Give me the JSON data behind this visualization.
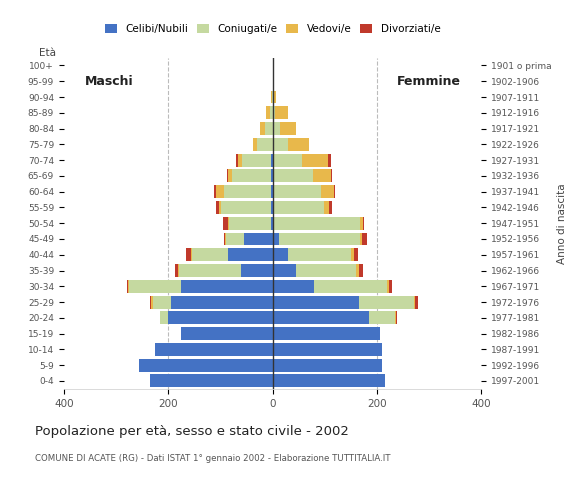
{
  "age_groups": [
    "0-4",
    "5-9",
    "10-14",
    "15-19",
    "20-24",
    "25-29",
    "30-34",
    "35-39",
    "40-44",
    "45-49",
    "50-54",
    "55-59",
    "60-64",
    "65-69",
    "70-74",
    "75-79",
    "80-84",
    "85-89",
    "90-94",
    "95-99",
    "100+"
  ],
  "birth_years": [
    "1997-2001",
    "1992-1996",
    "1987-1991",
    "1982-1986",
    "1977-1981",
    "1972-1976",
    "1967-1971",
    "1962-1966",
    "1957-1961",
    "1952-1956",
    "1947-1951",
    "1942-1946",
    "1937-1941",
    "1932-1936",
    "1927-1931",
    "1922-1926",
    "1917-1921",
    "1912-1916",
    "1907-1911",
    "1902-1906",
    "1901 o prima"
  ],
  "males": {
    "celibe": [
      235,
      255,
      225,
      175,
      200,
      195,
      175,
      60,
      85,
      55,
      3,
      3,
      3,
      3,
      3,
      0,
      0,
      0,
      0,
      0,
      0
    ],
    "coniugato": [
      0,
      0,
      0,
      0,
      15,
      35,
      100,
      120,
      70,
      35,
      80,
      95,
      90,
      75,
      55,
      30,
      15,
      5,
      2,
      0,
      0
    ],
    "vedovo": [
      0,
      0,
      0,
      0,
      0,
      2,
      2,
      2,
      2,
      2,
      2,
      5,
      15,
      8,
      8,
      8,
      10,
      8,
      2,
      0,
      0
    ],
    "divorziato": [
      0,
      0,
      0,
      0,
      0,
      2,
      2,
      5,
      8,
      2,
      10,
      5,
      5,
      2,
      5,
      0,
      0,
      0,
      0,
      0,
      0
    ]
  },
  "females": {
    "nubile": [
      215,
      210,
      210,
      205,
      185,
      165,
      80,
      45,
      30,
      12,
      3,
      3,
      3,
      2,
      2,
      0,
      0,
      0,
      0,
      0,
      0
    ],
    "coniugata": [
      0,
      0,
      0,
      0,
      50,
      105,
      140,
      115,
      120,
      155,
      165,
      95,
      90,
      75,
      55,
      30,
      15,
      5,
      2,
      0,
      0
    ],
    "vedova": [
      0,
      0,
      0,
      0,
      2,
      3,
      3,
      5,
      5,
      5,
      5,
      10,
      25,
      35,
      50,
      40,
      30,
      25,
      5,
      0,
      0
    ],
    "divorziata": [
      0,
      0,
      0,
      0,
      2,
      5,
      5,
      8,
      8,
      8,
      2,
      5,
      2,
      2,
      5,
      0,
      0,
      0,
      0,
      0,
      0
    ]
  },
  "colors": {
    "celibe": "#4472C4",
    "coniugato": "#C5D9A0",
    "vedovo": "#E8B84B",
    "divorziato": "#C0392B"
  },
  "xlim": 400,
  "title": "Popolazione per età, sesso e stato civile - 2002",
  "subtitle": "COMUNE DI ACATE (RG) - Dati ISTAT 1° gennaio 2002 - Elaborazione TUTTITALIA.IT",
  "ylabel_left": "Età",
  "ylabel_right": "Anno di nascita",
  "xlabel_left": "Maschi",
  "xlabel_right": "Femmine"
}
